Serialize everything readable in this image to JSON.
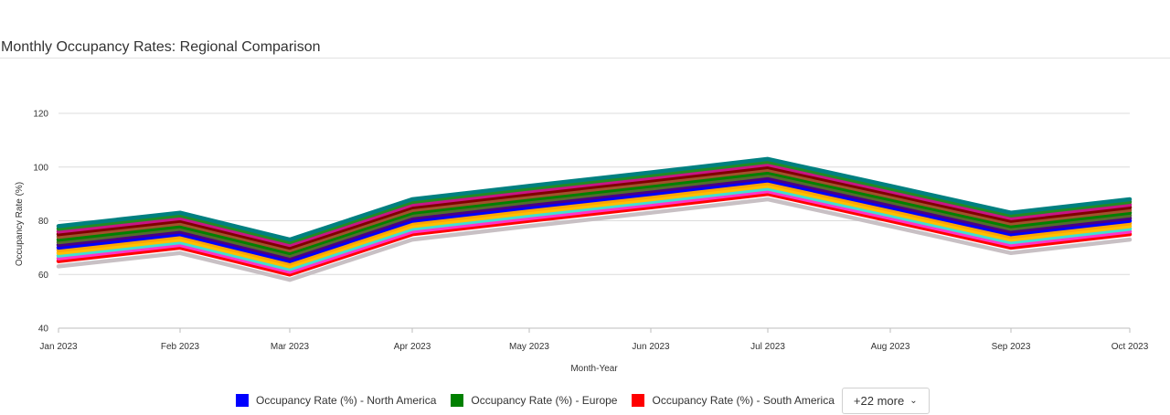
{
  "title": "Monthly Occupancy Rates: Regional Comparison",
  "more_button": {
    "label": "+22 more",
    "chevron": "chevron-down-icon"
  },
  "legend": [
    {
      "label": "Occupancy Rate (%) - North America",
      "color": "#0000ff"
    },
    {
      "label": "Occupancy Rate (%) - Europe",
      "color": "#008000"
    },
    {
      "label": "Occupancy Rate (%) - South America",
      "color": "#ff0000"
    }
  ],
  "chart_data": {
    "type": "line",
    "xlabel": "Month-Year",
    "ylabel": "Occupancy Rate (%)",
    "ylim": [
      40,
      120
    ],
    "yticks": [
      40,
      60,
      80,
      100,
      120
    ],
    "grid": true,
    "legend_position": "bottom",
    "x": [
      "Jan 2023",
      "Feb 2023",
      "Mar 2023",
      "Apr 2023",
      "May 2023",
      "Jun 2023",
      "Jul 2023",
      "Aug 2023",
      "Sep 2023",
      "Oct 2023"
    ],
    "series": [
      {
        "color": "#c8c0c4",
        "values": [
          63,
          68,
          58,
          73,
          78,
          83,
          88,
          78,
          68,
          73
        ]
      },
      {
        "color": "#ff0000",
        "values": [
          65,
          70,
          60,
          75,
          80,
          85,
          90,
          80,
          70,
          75
        ]
      },
      {
        "color": "#ff33cc",
        "values": [
          66,
          71,
          61,
          76,
          81,
          86,
          91,
          81,
          71,
          76
        ]
      },
      {
        "color": "#40e0d0",
        "values": [
          67,
          72,
          62,
          77,
          82,
          87,
          92,
          82,
          72,
          77
        ]
      },
      {
        "color": "#ffc000",
        "values": [
          68,
          73,
          63,
          78,
          83,
          88,
          93,
          83,
          73,
          78
        ]
      },
      {
        "color": "#ffa500",
        "values": [
          69,
          74,
          64,
          79,
          84,
          89,
          94,
          84,
          74,
          79
        ]
      },
      {
        "color": "#0000ff",
        "values": [
          70,
          75,
          65,
          80,
          85,
          90,
          95,
          85,
          75,
          80
        ]
      },
      {
        "color": "#4b0082",
        "values": [
          71,
          76,
          66,
          81,
          86,
          91,
          96,
          86,
          76,
          81
        ]
      },
      {
        "color": "#556b2f",
        "values": [
          72,
          77,
          67,
          82,
          87,
          92,
          97,
          87,
          77,
          82
        ]
      },
      {
        "color": "#008000",
        "values": [
          73,
          78,
          68,
          83,
          88,
          93,
          98,
          88,
          78,
          83
        ]
      },
      {
        "color": "#a0522d",
        "values": [
          74,
          79,
          69,
          84,
          89,
          94,
          99,
          89,
          79,
          84
        ]
      },
      {
        "color": "#800000",
        "values": [
          75,
          80,
          70,
          85,
          90,
          95,
          100,
          90,
          80,
          85
        ]
      },
      {
        "color": "#c71585",
        "values": [
          76,
          81,
          71,
          86,
          91,
          96,
          101,
          91,
          81,
          86
        ]
      },
      {
        "color": "#228b22",
        "values": [
          77,
          82,
          72,
          87,
          92,
          97,
          102,
          92,
          82,
          87
        ]
      },
      {
        "color": "#008080",
        "values": [
          78,
          83,
          73,
          88,
          93,
          98,
          103,
          93,
          83,
          88
        ]
      }
    ]
  }
}
